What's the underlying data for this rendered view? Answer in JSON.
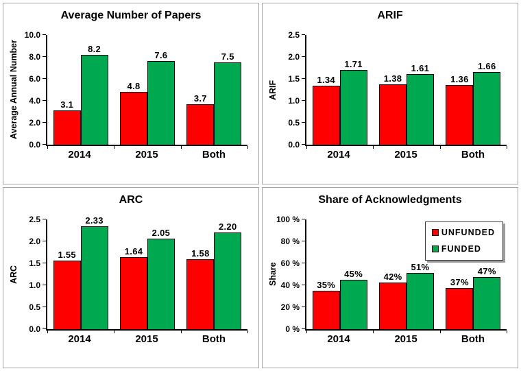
{
  "page": {
    "background_color": "#ffffff",
    "panel_border_color": "#a3a3a3"
  },
  "colors": {
    "unfunded": "#ff0000",
    "funded": "#00a94f",
    "bar_border": "#000000",
    "axis": "#000000",
    "text": "#000000"
  },
  "chart_data": [
    {
      "id": "average-papers",
      "type": "bar",
      "title": "Average Number of Papers",
      "ylabel": "Average Annual Number",
      "xlabel": "",
      "categories": [
        "2014",
        "2015",
        "Both"
      ],
      "series": [
        {
          "name": "UNFUNDED",
          "color": "#ff0000",
          "values": [
            3.1,
            4.8,
            3.7
          ],
          "labels": [
            "3.1",
            "4.8",
            "3.7"
          ]
        },
        {
          "name": "FUNDED",
          "color": "#00a94f",
          "values": [
            8.2,
            7.6,
            7.5
          ],
          "labels": [
            "8.2",
            "7.6",
            "7.5"
          ]
        }
      ],
      "ylim": [
        0,
        10
      ],
      "yticks": [
        0,
        2,
        4,
        6,
        8,
        10
      ],
      "ytick_labels": [
        "0.0",
        "2.0",
        "4.0",
        "6.0",
        "8.0",
        "10.0"
      ],
      "grid": false,
      "legend": false
    },
    {
      "id": "arif",
      "type": "bar",
      "title": "ARIF",
      "ylabel": "ARIF",
      "xlabel": "",
      "categories": [
        "2014",
        "2015",
        "Both"
      ],
      "series": [
        {
          "name": "UNFUNDED",
          "color": "#ff0000",
          "values": [
            1.34,
            1.38,
            1.36
          ],
          "labels": [
            "1.34",
            "1.38",
            "1.36"
          ]
        },
        {
          "name": "FUNDED",
          "color": "#00a94f",
          "values": [
            1.71,
            1.61,
            1.66
          ],
          "labels": [
            "1.71",
            "1.61",
            "1.66"
          ]
        }
      ],
      "ylim": [
        0,
        2.5
      ],
      "yticks": [
        0,
        0.5,
        1,
        1.5,
        2,
        2.5
      ],
      "ytick_labels": [
        "0.0",
        "0.5",
        "1.0",
        "1.5",
        "2.0",
        "2.5"
      ],
      "grid": false,
      "legend": false
    },
    {
      "id": "arc",
      "type": "bar",
      "title": "ARC",
      "ylabel": "ARC",
      "xlabel": "",
      "categories": [
        "2014",
        "2015",
        "Both"
      ],
      "series": [
        {
          "name": "UNFUNDED",
          "color": "#ff0000",
          "values": [
            1.55,
            1.64,
            1.58
          ],
          "labels": [
            "1.55",
            "1.64",
            "1.58"
          ]
        },
        {
          "name": "FUNDED",
          "color": "#00a94f",
          "values": [
            2.33,
            2.05,
            2.2
          ],
          "labels": [
            "2.33",
            "2.05",
            "2.20"
          ]
        }
      ],
      "ylim": [
        0,
        2.5
      ],
      "yticks": [
        0,
        0.5,
        1,
        1.5,
        2,
        2.5
      ],
      "ytick_labels": [
        "0.0",
        "0.5",
        "1.0",
        "1.5",
        "2.0",
        "2.5"
      ],
      "grid": false,
      "legend": false
    },
    {
      "id": "share-acknowledgments",
      "type": "bar",
      "title": "Share of Acknowledgments",
      "ylabel": "Share",
      "xlabel": "",
      "categories": [
        "2014",
        "2015",
        "Both"
      ],
      "series": [
        {
          "name": "UNFUNDED",
          "color": "#ff0000",
          "values": [
            35,
            42,
            37
          ],
          "labels": [
            "35%",
            "42%",
            "37%"
          ]
        },
        {
          "name": "FUNDED",
          "color": "#00a94f",
          "values": [
            45,
            51,
            47
          ],
          "labels": [
            "45%",
            "51%",
            "47%"
          ]
        }
      ],
      "ylim": [
        0,
        100
      ],
      "yticks": [
        0,
        20,
        40,
        60,
        80,
        100
      ],
      "ytick_labels": [
        "0 %",
        "20 %",
        "40 %",
        "60 %",
        "80 %",
        "100 %"
      ],
      "grid": false,
      "legend": true,
      "legend_position": "top-right",
      "legend_items": [
        {
          "label": "UNFUNDED",
          "color": "#ff0000"
        },
        {
          "label": "FUNDED",
          "color": "#00a94f"
        }
      ]
    }
  ]
}
